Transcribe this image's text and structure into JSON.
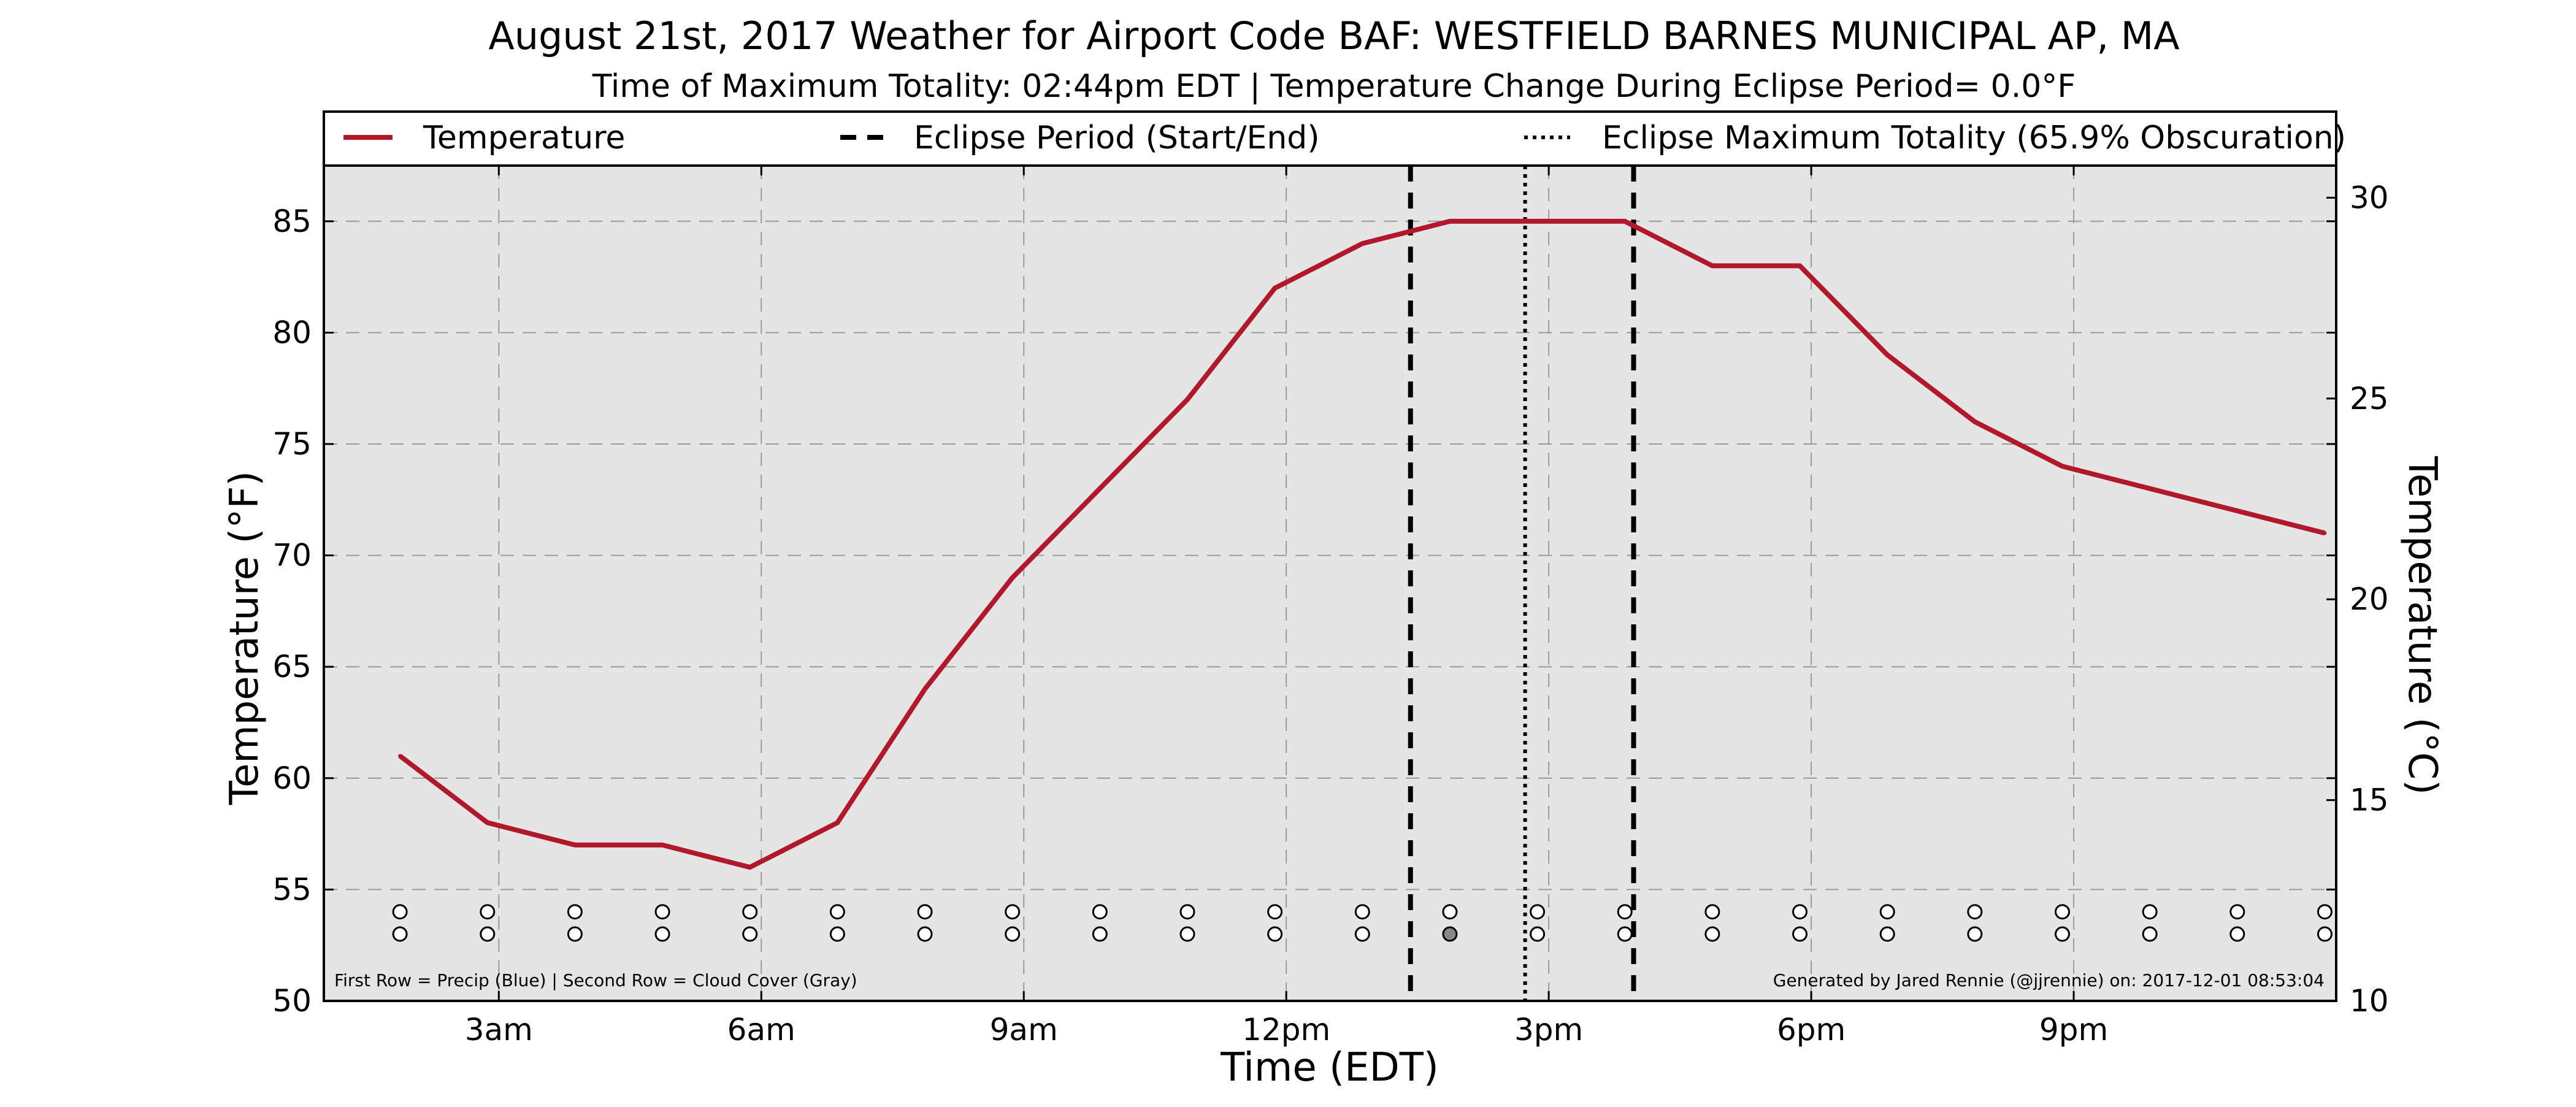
{
  "chart_data": {
    "type": "line",
    "title": "August 21st, 2017 Weather for Airport Code BAF: WESTFIELD BARNES MUNICIPAL AP, MA",
    "subtitle": "Time of Maximum Totality: 02:44pm EDT | Temperature Change During Eclipse Period= 0.0°F",
    "xlabel": "Time (EDT)",
    "ylabel": "Temperature (°F)",
    "y2label": "Temperature (°C)",
    "xlim": [
      1.0,
      24.0
    ],
    "ylim": [
      50,
      87.5
    ],
    "y2lim": [
      10,
      30.8
    ],
    "grid": true,
    "background": "#e5e5e5",
    "x_ticks": [
      {
        "x": 3,
        "label": "3am"
      },
      {
        "x": 6,
        "label": "6am"
      },
      {
        "x": 9,
        "label": "9am"
      },
      {
        "x": 12,
        "label": "12pm"
      },
      {
        "x": 15,
        "label": "3pm"
      },
      {
        "x": 18,
        "label": "6pm"
      },
      {
        "x": 21,
        "label": "9pm"
      }
    ],
    "y_ticks": [
      50,
      55,
      60,
      65,
      70,
      75,
      80,
      85
    ],
    "y2_ticks": [
      10,
      15,
      20,
      25,
      30
    ],
    "series": [
      {
        "name": "Temperature",
        "color": "#b2182b",
        "x": [
          1.87,
          2.87,
          3.87,
          4.87,
          5.87,
          6.87,
          7.87,
          8.87,
          9.87,
          10.87,
          11.87,
          12.87,
          13.87,
          14.87,
          15.87,
          16.87,
          17.87,
          18.87,
          19.87,
          20.87,
          21.87,
          22.87,
          23.87
        ],
        "values": [
          61,
          58,
          57,
          57,
          56,
          58,
          64,
          69,
          73,
          77,
          82,
          84,
          85,
          85,
          85,
          83,
          83,
          79,
          76,
          74,
          73,
          72,
          71
        ]
      }
    ],
    "eclipse": {
      "start": 13.42,
      "end": 15.97,
      "max": 14.73,
      "legend_period": "Eclipse Period (Start/End)",
      "legend_max": "Eclipse Maximum Totality (65.9% Obscuration)"
    },
    "markers": {
      "precip_row_y": 54,
      "cloud_row_y": 53,
      "x": [
        1.87,
        2.87,
        3.87,
        4.87,
        5.87,
        6.87,
        7.87,
        8.87,
        9.87,
        10.87,
        11.87,
        12.87,
        13.87,
        14.87,
        15.87,
        16.87,
        17.87,
        18.87,
        19.87,
        20.87,
        21.87,
        22.87,
        23.87
      ],
      "cloud_filled": [
        13.87
      ],
      "precip_color": "#ffffff",
      "cloud_fill_color": "#888888"
    },
    "legend_placement": "top",
    "footnote_left": "First Row = Precip (Blue) | Second Row = Cloud Cover (Gray)",
    "footnote_right": "Generated by Jared Rennie (@jjrennie) on: 2017-12-01 08:53:04"
  }
}
